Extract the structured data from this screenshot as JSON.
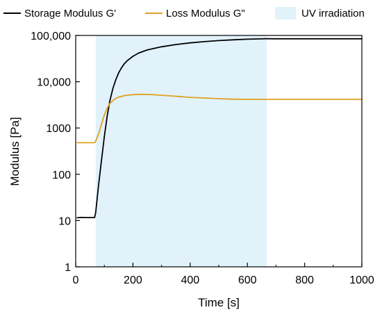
{
  "chart_data": {
    "type": "line",
    "xlabel": "Time [s]",
    "ylabel": "Modulus [Pa]",
    "xlim": [
      0,
      1000
    ],
    "ylim": [
      1,
      100000
    ],
    "y_scale": "log",
    "grid": false,
    "legend_placement": "top",
    "x_ticks": [
      0,
      200,
      400,
      600,
      800,
      1000
    ],
    "x_tick_labels": [
      "0",
      "200",
      "400",
      "600",
      "800",
      "1000"
    ],
    "y_ticks": [
      1,
      10,
      100,
      1000,
      10000,
      100000
    ],
    "y_tick_labels": [
      "1",
      "10",
      "100",
      "1000",
      "10,000",
      "100,000"
    ],
    "shaded_region": {
      "label": "UV irradiation",
      "x": [
        70,
        668
      ],
      "color": "#e1f2fb"
    },
    "series": [
      {
        "name": "Storage Modulus G'",
        "color": "#000000",
        "x": [
          5,
          20,
          40,
          60,
          66,
          70,
          75,
          80,
          90,
          100,
          110,
          120,
          130,
          140,
          150,
          160,
          170,
          180,
          200,
          220,
          250,
          300,
          350,
          400,
          450,
          500,
          550,
          600,
          650,
          668,
          700,
          750,
          800,
          900,
          1000
        ],
        "y": [
          11.5,
          11.7,
          11.6,
          11.6,
          11.6,
          15,
          30,
          60,
          200,
          650,
          1800,
          4000,
          7200,
          11000,
          15500,
          20000,
          24500,
          28500,
          35500,
          41500,
          48500,
          57000,
          63500,
          69000,
          73500,
          77500,
          80500,
          83000,
          84500,
          85000,
          84700,
          84700,
          84700,
          84700,
          84700
        ]
      },
      {
        "name": "Loss Modulus G\"",
        "color": "#e0a020",
        "x": [
          5,
          20,
          40,
          60,
          66,
          70,
          80,
          90,
          100,
          110,
          120,
          130,
          140,
          150,
          170,
          200,
          230,
          260,
          300,
          350,
          400,
          450,
          500,
          550,
          600,
          650,
          700,
          800,
          900,
          1000
        ],
        "y": [
          480,
          480,
          480,
          480,
          485,
          520,
          750,
          1200,
          1900,
          2700,
          3400,
          3950,
          4350,
          4650,
          5000,
          5250,
          5350,
          5300,
          5100,
          4850,
          4600,
          4450,
          4300,
          4200,
          4150,
          4150,
          4150,
          4150,
          4150,
          4150
        ]
      }
    ]
  },
  "legend": {
    "items": [
      {
        "label": "Storage Modulus G'",
        "kind": "line",
        "color": "#000000"
      },
      {
        "label": "Loss Modulus G\"",
        "kind": "line",
        "color": "#e0a020"
      },
      {
        "label": "UV irradiation",
        "kind": "box",
        "color": "#e1f2fb"
      }
    ]
  }
}
